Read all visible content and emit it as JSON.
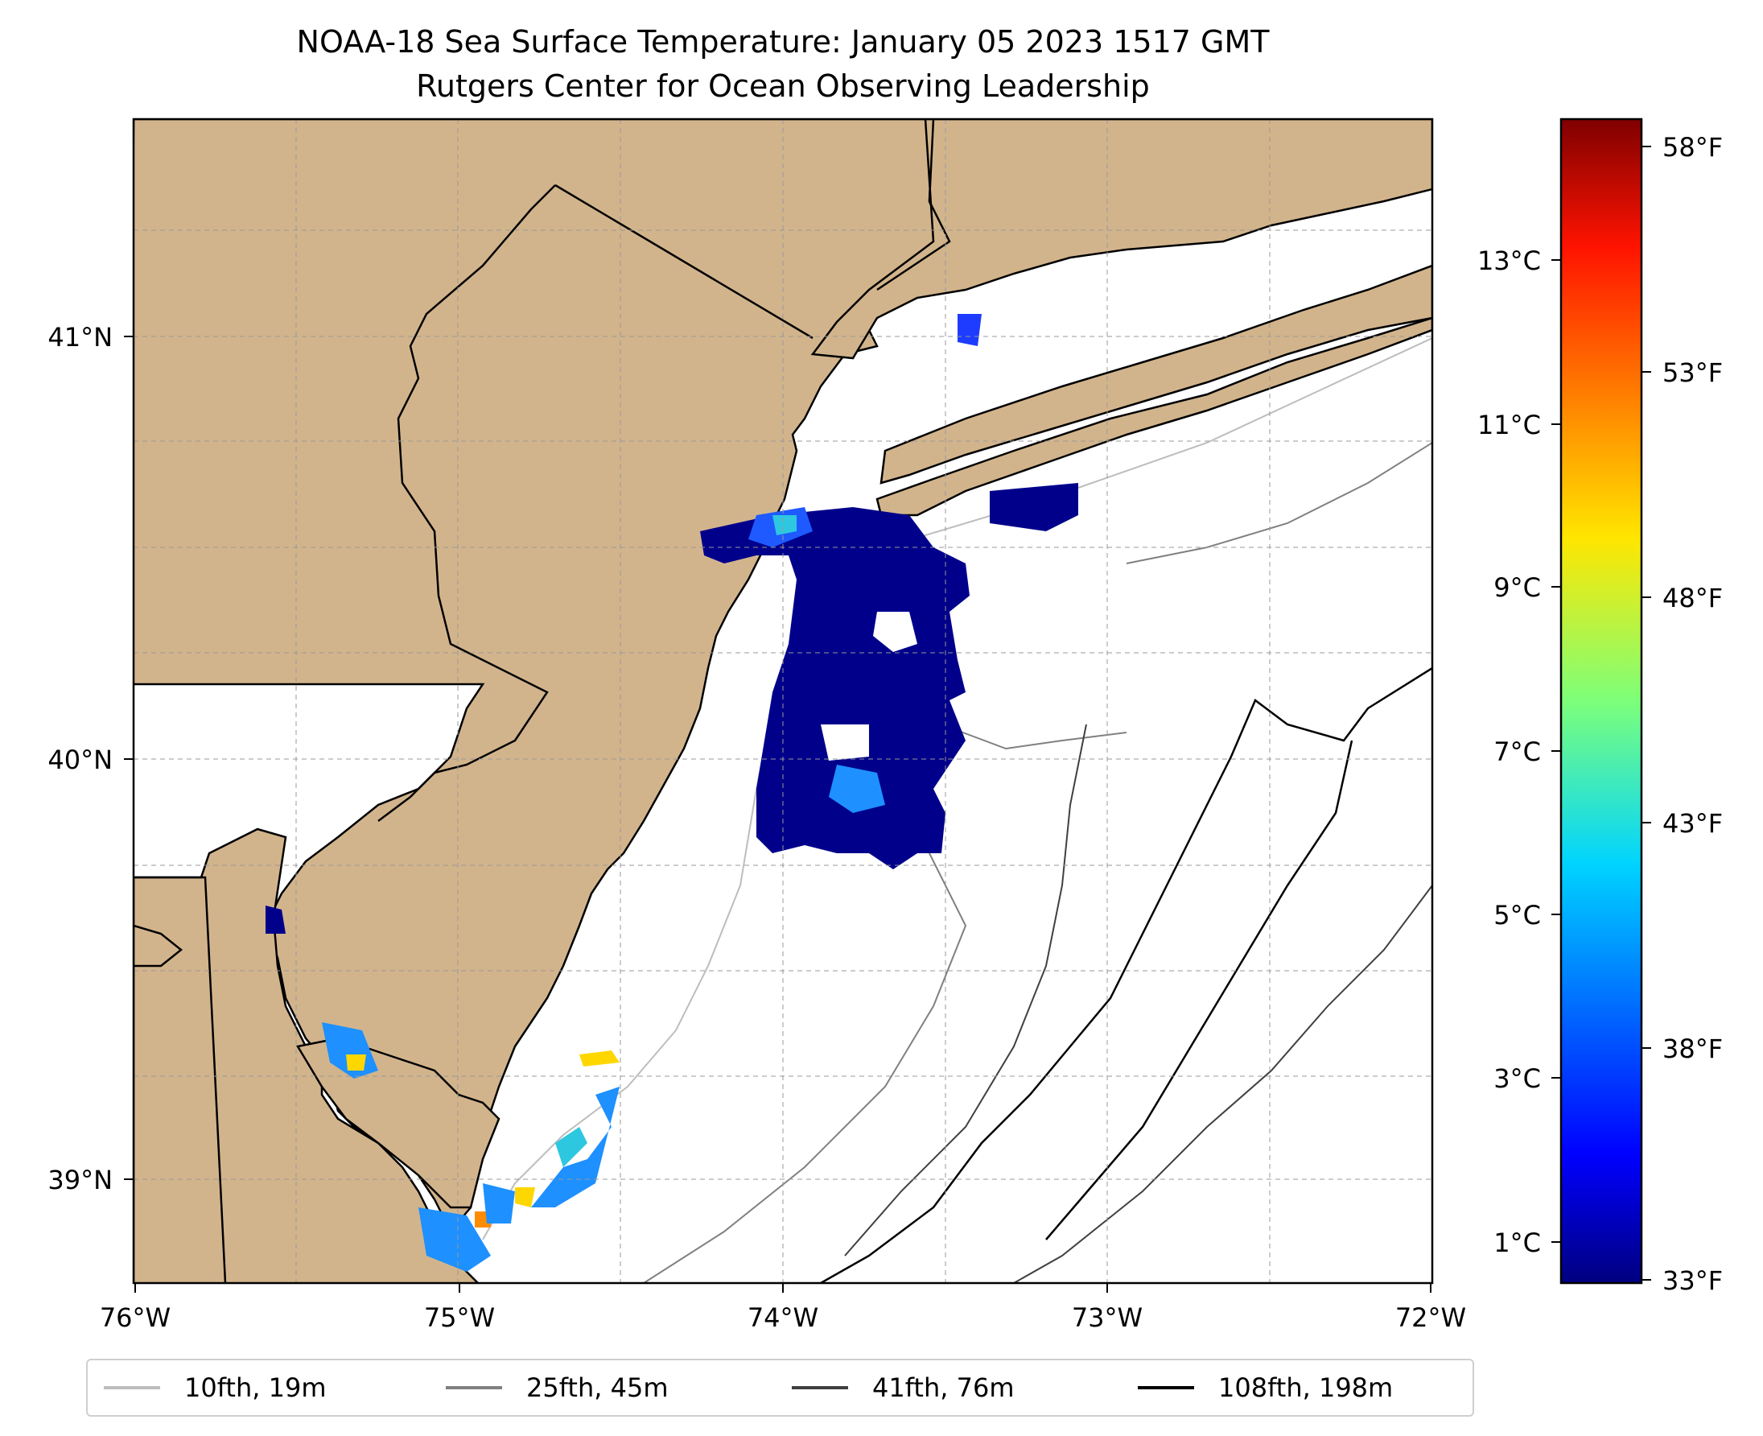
{
  "title": {
    "line1": "NOAA-18 Sea Surface Temperature: January 05 2023 1517 GMT",
    "line2": "Rutgers Center for Ocean Observing Leadership"
  },
  "axes": {
    "lon_ticks": [
      "76°W",
      "75°W",
      "74°W",
      "73°W",
      "72°W"
    ],
    "lat_ticks": [
      "41°N",
      "40°N",
      "39°N"
    ],
    "lon_range": [
      -76,
      -72
    ],
    "lat_range": [
      38.74,
      41.52
    ]
  },
  "colorbar": {
    "celsius_ticks": [
      "13°C",
      "11°C",
      "9°C",
      "7°C",
      "5°C",
      "3°C",
      "1°C"
    ],
    "fahrenheit_ticks": [
      "58°F",
      "53°F",
      "48°F",
      "43°F",
      "38°F",
      "33°F"
    ],
    "range_f": [
      33,
      59
    ],
    "colormap": "jet"
  },
  "legend": [
    {
      "label": "10fth, 19m",
      "color": "#bdbdbd"
    },
    {
      "label": "25fth, 45m",
      "color": "#808080"
    },
    {
      "label": "41fth, 76m",
      "color": "#404040"
    },
    {
      "label": "108fth, 198m",
      "color": "#000000"
    }
  ],
  "colors": {
    "land": "#d2b48c",
    "ocean": "#ffffff",
    "sst_cold": "#00008b",
    "sst_mid": "#1e90ff",
    "sst_warm": "#ffd700"
  }
}
